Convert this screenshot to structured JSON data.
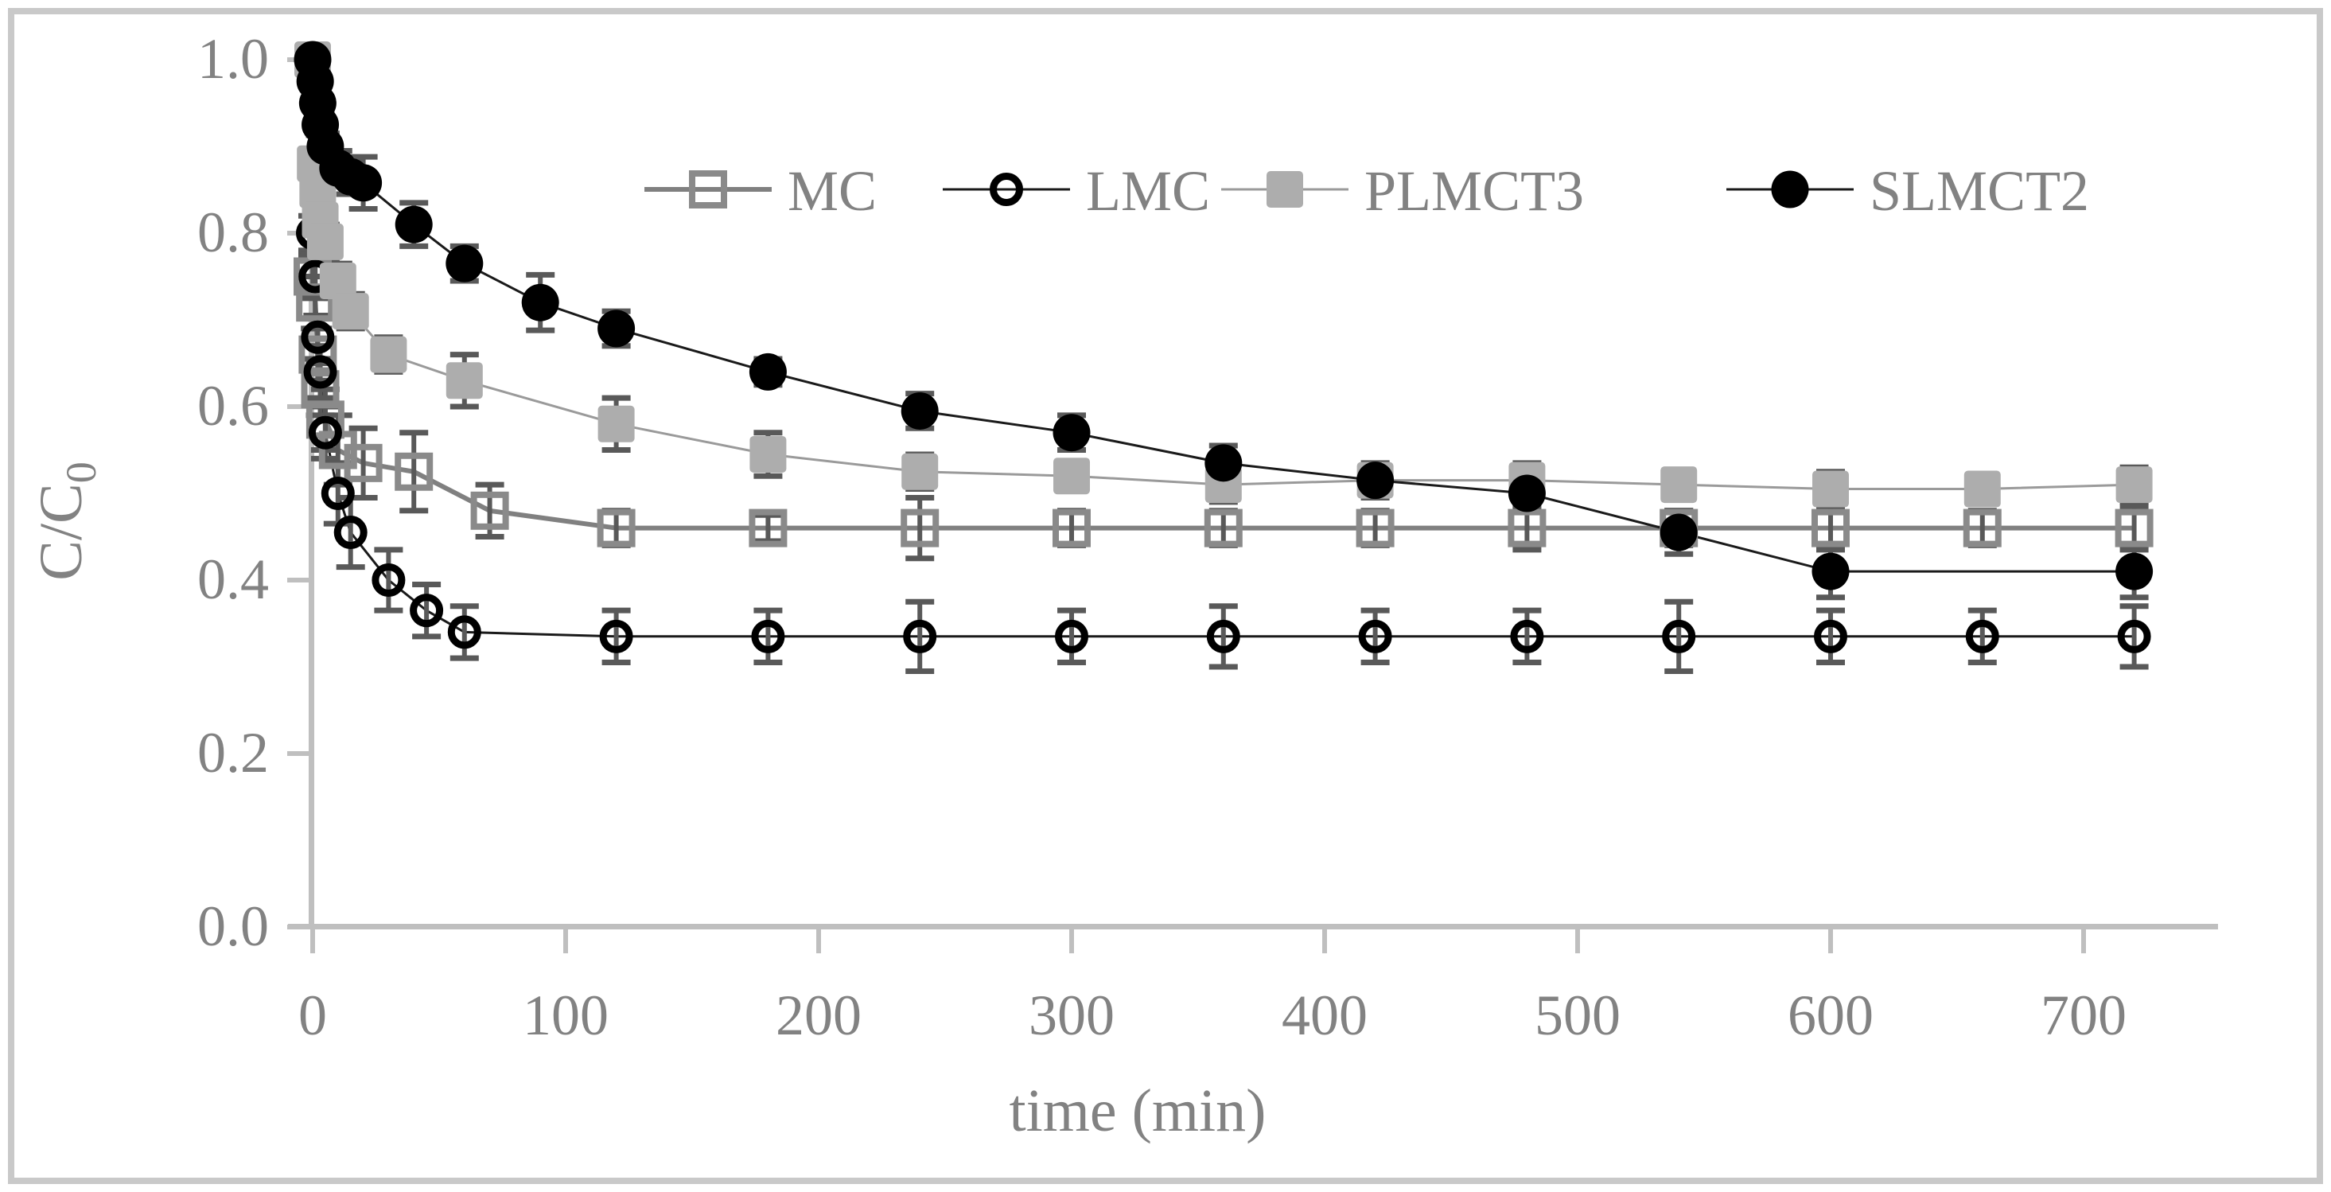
{
  "figure": {
    "background": "#ffffff",
    "border_color": "#c9c9c9",
    "text_color": "#828282",
    "axis_color": "#bfbfbf",
    "error_bar_color": "#595959"
  },
  "chart_data": {
    "type": "scatter",
    "title": "",
    "xlabel": "time (min)",
    "ylabel_main": "C/C",
    "ylabel_sub": "0",
    "xlim": [
      -10,
      753
    ],
    "ylim": [
      0.0,
      1.0
    ],
    "grid": false,
    "legend_position": "top-center",
    "x_ticks": [
      0,
      100,
      200,
      300,
      400,
      500,
      600,
      700
    ],
    "y_ticks": [
      "0.0",
      "0.2",
      "0.4",
      "0.6",
      "0.8",
      "1.0"
    ],
    "y_tick_values": [
      0.0,
      0.2,
      0.4,
      0.6,
      0.8,
      1.0
    ],
    "series": [
      {
        "name": "MC",
        "marker": "open-square",
        "marker_color": "#8a8a8a",
        "line_color": "#808080",
        "line_width": 6,
        "points": [
          [
            0,
            0.75,
            0.025
          ],
          [
            1,
            0.72,
            0.03
          ],
          [
            2,
            0.66,
            0.03
          ],
          [
            3,
            0.62,
            0.03
          ],
          [
            5,
            0.585,
            0.035
          ],
          [
            10,
            0.55,
            0.04
          ],
          [
            20,
            0.535,
            0.04
          ],
          [
            40,
            0.525,
            0.045
          ],
          [
            70,
            0.48,
            0.03
          ],
          [
            120,
            0.46,
            0.02
          ],
          [
            180,
            0.46,
            0.015
          ],
          [
            240,
            0.46,
            0.035
          ],
          [
            300,
            0.46,
            0.02
          ],
          [
            360,
            0.46,
            0.02
          ],
          [
            420,
            0.46,
            0.02
          ],
          [
            480,
            0.46,
            0.025
          ],
          [
            540,
            0.46,
            0.02
          ],
          [
            600,
            0.46,
            0.025
          ],
          [
            660,
            0.46,
            0.02
          ],
          [
            720,
            0.46,
            0.025
          ]
        ]
      },
      {
        "name": "LMC",
        "marker": "open-circle",
        "marker_color": "#000000",
        "line_color": "#1a1a1a",
        "line_width": 3,
        "points": [
          [
            0,
            0.8,
            0.02
          ],
          [
            1,
            0.75,
            0.025
          ],
          [
            2,
            0.68,
            0.025
          ],
          [
            3,
            0.64,
            0.03
          ],
          [
            5,
            0.57,
            0.03
          ],
          [
            10,
            0.5,
            0.035
          ],
          [
            15,
            0.455,
            0.04
          ],
          [
            30,
            0.4,
            0.035
          ],
          [
            45,
            0.365,
            0.03
          ],
          [
            60,
            0.34,
            0.03
          ],
          [
            120,
            0.335,
            0.03
          ],
          [
            180,
            0.335,
            0.03
          ],
          [
            240,
            0.335,
            0.04
          ],
          [
            300,
            0.335,
            0.03
          ],
          [
            360,
            0.335,
            0.035
          ],
          [
            420,
            0.335,
            0.03
          ],
          [
            480,
            0.335,
            0.03
          ],
          [
            540,
            0.335,
            0.04
          ],
          [
            600,
            0.335,
            0.03
          ],
          [
            660,
            0.335,
            0.03
          ],
          [
            720,
            0.335,
            0.035
          ]
        ]
      },
      {
        "name": "PLMCT3",
        "marker": "filled-square",
        "marker_color": "#adadad",
        "line_color": "#9a9a9a",
        "line_width": 3,
        "points": [
          [
            0,
            1.0,
            0.01
          ],
          [
            1,
            0.88,
            0.015
          ],
          [
            2,
            0.85,
            0.015
          ],
          [
            3,
            0.815,
            0.015
          ],
          [
            5,
            0.79,
            0.02
          ],
          [
            10,
            0.745,
            0.02
          ],
          [
            15,
            0.71,
            0.02
          ],
          [
            30,
            0.66,
            0.02
          ],
          [
            60,
            0.63,
            0.03
          ],
          [
            120,
            0.58,
            0.03
          ],
          [
            180,
            0.545,
            0.025
          ],
          [
            240,
            0.525,
            0.02
          ],
          [
            300,
            0.52,
            0.015
          ],
          [
            360,
            0.51,
            0.02
          ],
          [
            420,
            0.515,
            0.02
          ],
          [
            480,
            0.515,
            0.02
          ],
          [
            540,
            0.51,
            0.015
          ],
          [
            600,
            0.505,
            0.02
          ],
          [
            660,
            0.505,
            0.015
          ],
          [
            720,
            0.51,
            0.02
          ]
        ]
      },
      {
        "name": "SLMCT2",
        "marker": "filled-circle",
        "marker_color": "#000000",
        "line_color": "#1a1a1a",
        "line_width": 3,
        "points": [
          [
            0,
            1.0,
            0.01
          ],
          [
            1,
            0.975,
            0.01
          ],
          [
            2,
            0.95,
            0.01
          ],
          [
            3,
            0.925,
            0.012
          ],
          [
            5,
            0.9,
            0.015
          ],
          [
            10,
            0.875,
            0.02
          ],
          [
            15,
            0.865,
            0.02
          ],
          [
            20,
            0.858,
            0.03
          ],
          [
            40,
            0.81,
            0.025
          ],
          [
            60,
            0.765,
            0.02
          ],
          [
            90,
            0.72,
            0.032
          ],
          [
            120,
            0.69,
            0.02
          ],
          [
            180,
            0.64,
            0.015
          ],
          [
            240,
            0.595,
            0.02
          ],
          [
            300,
            0.57,
            0.02
          ],
          [
            360,
            0.535,
            0.02
          ],
          [
            420,
            0.515,
            0.015
          ],
          [
            480,
            0.5,
            0.02
          ],
          [
            540,
            0.455,
            0.025
          ],
          [
            600,
            0.41,
            0.03
          ],
          [
            720,
            0.41,
            0.03
          ]
        ]
      }
    ]
  }
}
